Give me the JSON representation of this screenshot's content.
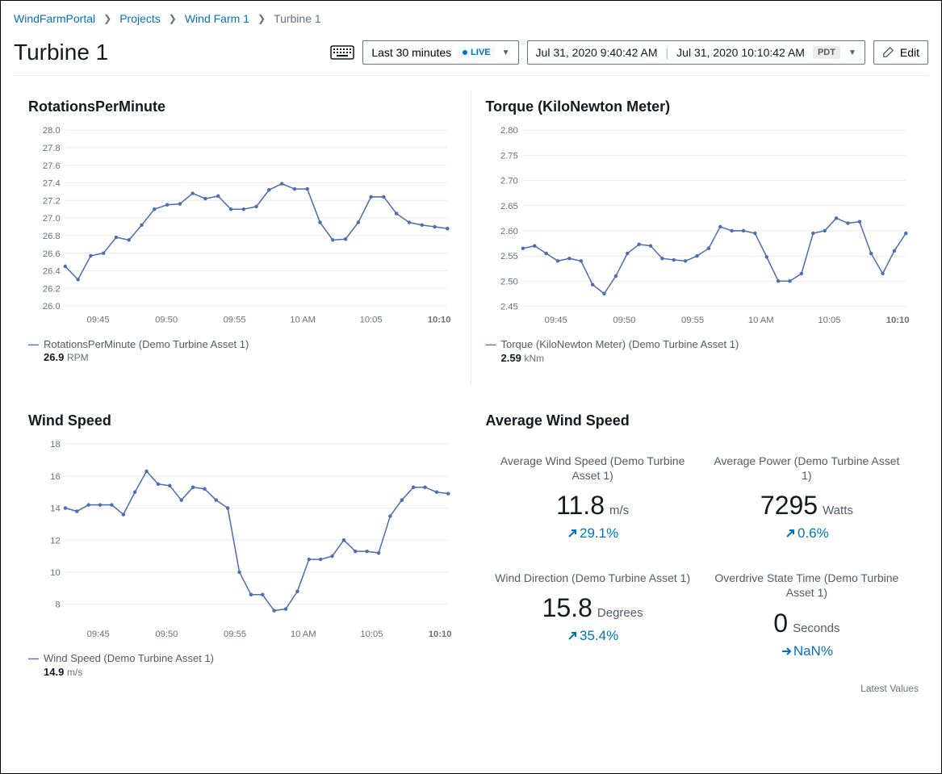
{
  "breadcrumb": {
    "root": "WindFarmPortal",
    "projects": "Projects",
    "farm": "Wind Farm 1",
    "current": "Turbine 1"
  },
  "page": {
    "title": "Turbine 1"
  },
  "toolbar": {
    "range_label": "Last 30 minutes",
    "live_label": "LIVE",
    "from_time": "Jul 31, 2020 9:40:42 AM",
    "to_time": "Jul 31, 2020 10:10:42 AM",
    "timezone": "PDT",
    "edit_label": "Edit"
  },
  "charts": {
    "common": {
      "x_labels": [
        "09:45",
        "09:50",
        "09:55",
        "10 AM",
        "10:05",
        "10:10"
      ],
      "line_color": "#4f6db3",
      "grid_color": "#eaeded",
      "axis_text_color": "#687078",
      "background": "#ffffff",
      "axis_fontsize": 11
    },
    "rpm": {
      "title": "RotationsPerMinute",
      "type": "line",
      "y_ticks": [
        26.0,
        26.2,
        26.4,
        26.6,
        26.8,
        27.0,
        27.2,
        27.4,
        27.6,
        27.8,
        28.0
      ],
      "ylim": [
        26.0,
        28.0
      ],
      "values": [
        26.45,
        26.3,
        26.57,
        26.6,
        26.78,
        26.75,
        26.92,
        27.1,
        27.15,
        27.16,
        27.28,
        27.22,
        27.25,
        27.1,
        27.1,
        27.13,
        27.32,
        27.39,
        27.33,
        27.33,
        26.95,
        26.75,
        26.76,
        26.95,
        27.24,
        27.24,
        27.05,
        26.95,
        26.92,
        26.9,
        26.88
      ],
      "legend": "RotationsPerMinute (Demo Turbine Asset 1)",
      "current_value": "26.9",
      "unit": "RPM"
    },
    "torque": {
      "title": "Torque (KiloNewton Meter)",
      "type": "line",
      "y_ticks": [
        2.45,
        2.5,
        2.55,
        2.6,
        2.65,
        2.7,
        2.75,
        2.8
      ],
      "ylim": [
        2.45,
        2.8
      ],
      "values": [
        2.565,
        2.57,
        2.555,
        2.54,
        2.545,
        2.54,
        2.493,
        2.475,
        2.51,
        2.555,
        2.573,
        2.57,
        2.545,
        2.542,
        2.54,
        2.55,
        2.565,
        2.608,
        2.6,
        2.6,
        2.595,
        2.548,
        2.5,
        2.5,
        2.515,
        2.595,
        2.6,
        2.625,
        2.615,
        2.618,
        2.555,
        2.515,
        2.56,
        2.595
      ],
      "legend": "Torque (KiloNewton Meter) (Demo Turbine Asset 1)",
      "current_value": "2.59",
      "unit": "kNm"
    },
    "wind": {
      "title": "Wind Speed",
      "type": "line",
      "y_ticks": [
        8,
        10,
        12,
        14,
        16,
        18
      ],
      "ylim": [
        7,
        18
      ],
      "values": [
        14.0,
        13.8,
        14.2,
        14.2,
        14.2,
        13.6,
        15.0,
        16.3,
        15.5,
        15.4,
        14.5,
        15.3,
        15.2,
        14.5,
        14.0,
        10.0,
        8.6,
        8.6,
        7.6,
        7.7,
        8.8,
        10.8,
        10.8,
        11.0,
        12.0,
        11.3,
        11.3,
        11.2,
        13.5,
        14.5,
        15.3,
        15.3,
        15.0,
        14.9
      ],
      "legend": "Wind Speed (Demo Turbine Asset 1)",
      "current_value": "14.9",
      "unit": "m/s"
    }
  },
  "kpi_panel": {
    "title": "Average Wind Speed",
    "footer": "Latest Values",
    "items": [
      {
        "label": "Average Wind Speed (Demo Turbine Asset 1)",
        "value": "11.8",
        "unit": "m/s",
        "delta": "29.1%",
        "arrow": "up"
      },
      {
        "label": "Average Power (Demo Turbine Asset 1)",
        "value": "7295",
        "unit": "Watts",
        "delta": "0.6%",
        "arrow": "up"
      },
      {
        "label": "Wind Direction (Demo Turbine Asset 1)",
        "value": "15.8",
        "unit": "Degrees",
        "delta": "35.4%",
        "arrow": "up"
      },
      {
        "label": "Overdrive State Time (Demo Turbine Asset 1)",
        "value": "0",
        "unit": "Seconds",
        "delta": "NaN%",
        "arrow": "right"
      }
    ],
    "delta_color": "#0073bb"
  }
}
